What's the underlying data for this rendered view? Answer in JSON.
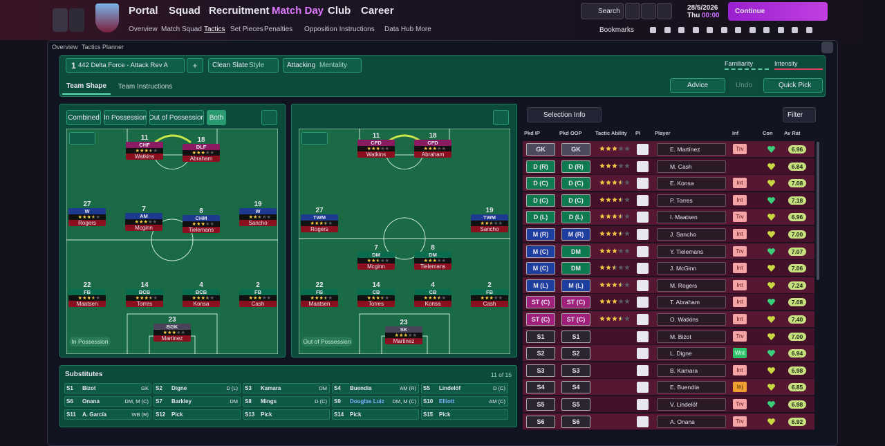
{
  "nav": {
    "menus": [
      "Portal",
      "Squad",
      "Recruitment",
      "Match Day",
      "Club",
      "Career"
    ],
    "submenu": [
      "Overview",
      "Match Squad",
      "Tactics",
      "Set Pieces",
      "Penalties",
      "Opposition Instructions",
      "Data Hub",
      "More"
    ],
    "search": "Search",
    "date": "28/5/2026",
    "day": "Thu",
    "time": "00:00",
    "continue": "Continue",
    "bookmarks": "Bookmarks"
  },
  "breadcrumb": [
    "Overview",
    "Tactics Planner"
  ],
  "tactic": {
    "slot": "1",
    "name": "442 Delta Force - Attack Rev A",
    "add": "+",
    "style_value": "Clean Slate",
    "style_label": "Style",
    "mentality_value": "Attacking",
    "mentality_label": "Mentality",
    "familiarity": "Familiarity",
    "intensity": "Intensity"
  },
  "tabs": [
    "Team Shape",
    "Team Instructions"
  ],
  "actions": [
    "Advice",
    "Undo",
    "Quick Pick"
  ],
  "shape_filters": [
    "Combined",
    "In Possession",
    "Out of Possession",
    "Both"
  ],
  "pitches": [
    {
      "label": "In Possession",
      "players": [
        {
          "number": 11,
          "role": "CHF",
          "name": "Watkins",
          "stars": 3.5
        },
        {
          "number": 18,
          "role": "DLF",
          "name": "Abraham",
          "stars": 3
        },
        {
          "number": 27,
          "role": "W",
          "name": "Rogers",
          "stars": 3.5
        },
        {
          "number": 7,
          "role": "AM",
          "name": "Mcginn",
          "stars": 3
        },
        {
          "number": 8,
          "role": "CHM",
          "name": "Tielemans",
          "stars": 3
        },
        {
          "number": 19,
          "role": "W",
          "name": "Sancho",
          "stars": 2.5
        },
        {
          "number": 22,
          "role": "FB",
          "name": "Maatsen",
          "stars": 3.5
        },
        {
          "number": 14,
          "role": "BCB",
          "name": "Torres",
          "stars": 3.5
        },
        {
          "number": 4,
          "role": "BCB",
          "name": "Konsa",
          "stars": 3.5
        },
        {
          "number": 2,
          "role": "FB",
          "name": "Cash",
          "stars": 3
        },
        {
          "number": 23,
          "role": "BGK",
          "name": "Martinez",
          "stars": 3
        }
      ]
    },
    {
      "label": "Out of Possession",
      "players": [
        {
          "number": 11,
          "role": "CFD",
          "name": "Watkins",
          "stars": 3
        },
        {
          "number": 18,
          "role": "CFD",
          "name": "Abraham",
          "stars": 3
        },
        {
          "number": 27,
          "role": "TWM",
          "name": "Rogers",
          "stars": 3.5
        },
        {
          "number": 7,
          "role": "DM",
          "name": "Mcginn",
          "stars": 2.5
        },
        {
          "number": 8,
          "role": "DM",
          "name": "Tielemans",
          "stars": 3
        },
        {
          "number": 19,
          "role": "TWM",
          "name": "Sancho",
          "stars": 2.5
        },
        {
          "number": 22,
          "role": "FB",
          "name": "Maatsen",
          "stars": 3.5
        },
        {
          "number": 14,
          "role": "CB",
          "name": "Torres",
          "stars": 3.5
        },
        {
          "number": 4,
          "role": "CB",
          "name": "Konsa",
          "stars": 3.5
        },
        {
          "number": 2,
          "role": "FB",
          "name": "Cash",
          "stars": 3
        },
        {
          "number": 23,
          "role": "SK",
          "name": "Martinez",
          "stars": 3
        }
      ]
    }
  ],
  "substitutes": {
    "title": "Substitutes",
    "count": "11 of 15",
    "slots": [
      {
        "slot": "S1",
        "name": "Bizot",
        "position": "GK"
      },
      {
        "slot": "S2",
        "name": "Digne",
        "position": "D (L)"
      },
      {
        "slot": "S3",
        "name": "Kamara",
        "position": "DM"
      },
      {
        "slot": "S4",
        "name": "Buendia",
        "position": "AM (R)"
      },
      {
        "slot": "S5",
        "name": "Lindelöf",
        "position": "D (C)"
      },
      {
        "slot": "S6",
        "name": "Onana",
        "position": "DM, M (C)"
      },
      {
        "slot": "S7",
        "name": "Barkley",
        "position": "DM"
      },
      {
        "slot": "S8",
        "name": "Mings",
        "position": "D (C)"
      },
      {
        "slot": "S9",
        "name": "Douglas Luiz",
        "position": "DM, M (C)"
      },
      {
        "slot": "S10",
        "name": "Elliott",
        "position": "AM (C)"
      },
      {
        "slot": "S11",
        "name": "A. García",
        "position": "WB (R)"
      },
      {
        "slot": "S12",
        "name": "Pick"
      },
      {
        "slot": "S13",
        "name": "Pick"
      },
      {
        "slot": "S14",
        "name": "Pick"
      },
      {
        "slot": "S15",
        "name": "Pick"
      }
    ]
  },
  "selection": {
    "info": "Selection Info",
    "filter": "Filter",
    "columns": [
      "Pkd IP",
      "Pkd OOP",
      "Tactic Ability",
      "PI",
      "Player",
      "Inf",
      "Con",
      "Av Rat"
    ],
    "rows": [
      {
        "ip": "GK",
        "oop": "GK",
        "ability": 3,
        "player": "E. Martínez",
        "inf": "Trv",
        "rating": "6.96"
      },
      {
        "ip": "D (R)",
        "oop": "D (R)",
        "ability": 3,
        "player": "M. Cash",
        "rating": "6.84"
      },
      {
        "ip": "D (C)",
        "oop": "D (C)",
        "ability": 3.5,
        "player": "E. Konsa",
        "inf": "Int",
        "rating": "7.08"
      },
      {
        "ip": "D (C)",
        "oop": "D (C)",
        "ability": 3.5,
        "player": "P. Torres",
        "inf": "Int",
        "rating": "7.18"
      },
      {
        "ip": "D (L)",
        "oop": "D (L)",
        "ability": 3.5,
        "player": "I. Maatsen",
        "inf": "Trv",
        "rating": "6.96"
      },
      {
        "ip": "M (R)",
        "oop": "M (R)",
        "ability": 3.5,
        "player": "J. Sancho",
        "inf": "Int",
        "rating": "7.00"
      },
      {
        "ip": "M (C)",
        "oop": "DM",
        "ability": 3,
        "player": "Y. Tielemans",
        "inf": "Trv",
        "rating": "7.07"
      },
      {
        "ip": "M (C)",
        "oop": "DM",
        "ability": 2.5,
        "player": "J. McGinn",
        "inf": "Int",
        "rating": "7.06"
      },
      {
        "ip": "M (L)",
        "oop": "M (L)",
        "ability": 3.5,
        "player": "M. Rogers",
        "inf": "Int",
        "rating": "7.24"
      },
      {
        "ip": "ST (C)",
        "oop": "ST (C)",
        "ability": 3,
        "player": "T. Abraham",
        "inf": "Int",
        "rating": "7.08"
      },
      {
        "ip": "ST (C)",
        "oop": "ST (C)",
        "ability": 3.5,
        "player": "O. Watkins",
        "inf": "Int",
        "rating": "7.40"
      },
      {
        "ip": "S1",
        "oop": "S1",
        "player": "M. Bizot",
        "inf": "Trv",
        "rating": "7.00"
      },
      {
        "ip": "S2",
        "oop": "S2",
        "player": "L. Digne",
        "inf": "Wnt",
        "rating": "6.94"
      },
      {
        "ip": "S3",
        "oop": "S3",
        "player": "B. Kamara",
        "inf": "Int",
        "rating": "6.98"
      },
      {
        "ip": "S4",
        "oop": "S4",
        "player": "E. Buendía",
        "inf": "Inj",
        "rating": "6.85"
      },
      {
        "ip": "S5",
        "oop": "S5",
        "player": "V. Lindelöf",
        "inf": "Trv",
        "rating": "6.98"
      },
      {
        "ip": "S6",
        "oop": "S6",
        "player": "A. Onana",
        "inf": "Trv",
        "rating": "6.92"
      }
    ]
  }
}
